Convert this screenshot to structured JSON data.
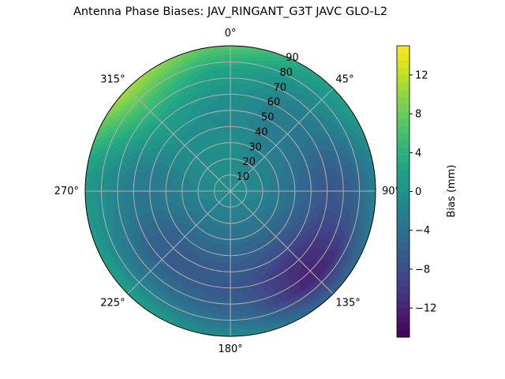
{
  "chart_data": {
    "type": "heatmap",
    "subtype": "polar-contourf",
    "title": "Antenna Phase Biases: JAV_RINGANT_G3T JAVC GLO-L2",
    "theta_zero": "N",
    "theta_direction": "clockwise",
    "theta_ticks": [
      "0°",
      "45°",
      "90°",
      "135°",
      "180°",
      "225°",
      "270°",
      "315°"
    ],
    "theta_tick_values": [
      0,
      45,
      90,
      135,
      180,
      225,
      270,
      315
    ],
    "r_ticks": [
      "10",
      "20",
      "30",
      "40",
      "50",
      "60",
      "70",
      "80",
      "90"
    ],
    "r_tick_values": [
      10,
      20,
      30,
      40,
      50,
      60,
      70,
      80,
      90
    ],
    "rlim": [
      0,
      90
    ],
    "grid": true,
    "colormap": "viridis",
    "colorbar": {
      "label": "Bias (mm)",
      "range": [
        -15,
        15
      ],
      "ticks": [
        "-12",
        "-8",
        "-4",
        "0",
        "4",
        "8",
        "12"
      ],
      "tick_values": [
        -12,
        -8,
        -4,
        0,
        4,
        8,
        12
      ]
    },
    "azimuth_deg": [
      0,
      45,
      90,
      135,
      180,
      225,
      270,
      315
    ],
    "zenith_deg": [
      0,
      15,
      30,
      45,
      60,
      75,
      90
    ],
    "bias_mm": [
      [
        -0.5,
        -0.5,
        -0.5,
        -1,
        0,
        2,
        7
      ],
      [
        -0.5,
        -1,
        -2,
        -3,
        -3,
        -1,
        2
      ],
      [
        -0.5,
        -1,
        -3,
        -5,
        -7,
        -6,
        -2
      ],
      [
        -0.5,
        -2,
        -4,
        -7,
        -11,
        -12,
        -5
      ],
      [
        -0.5,
        -2,
        -4,
        -6,
        -7,
        -5,
        -1
      ],
      [
        -0.5,
        -2,
        -4,
        -6,
        -6,
        -3,
        2
      ],
      [
        -0.5,
        -1,
        -2,
        -3,
        -3,
        -1,
        1
      ],
      [
        -0.5,
        -0.5,
        -0.5,
        0,
        2,
        6,
        11
      ]
    ]
  }
}
